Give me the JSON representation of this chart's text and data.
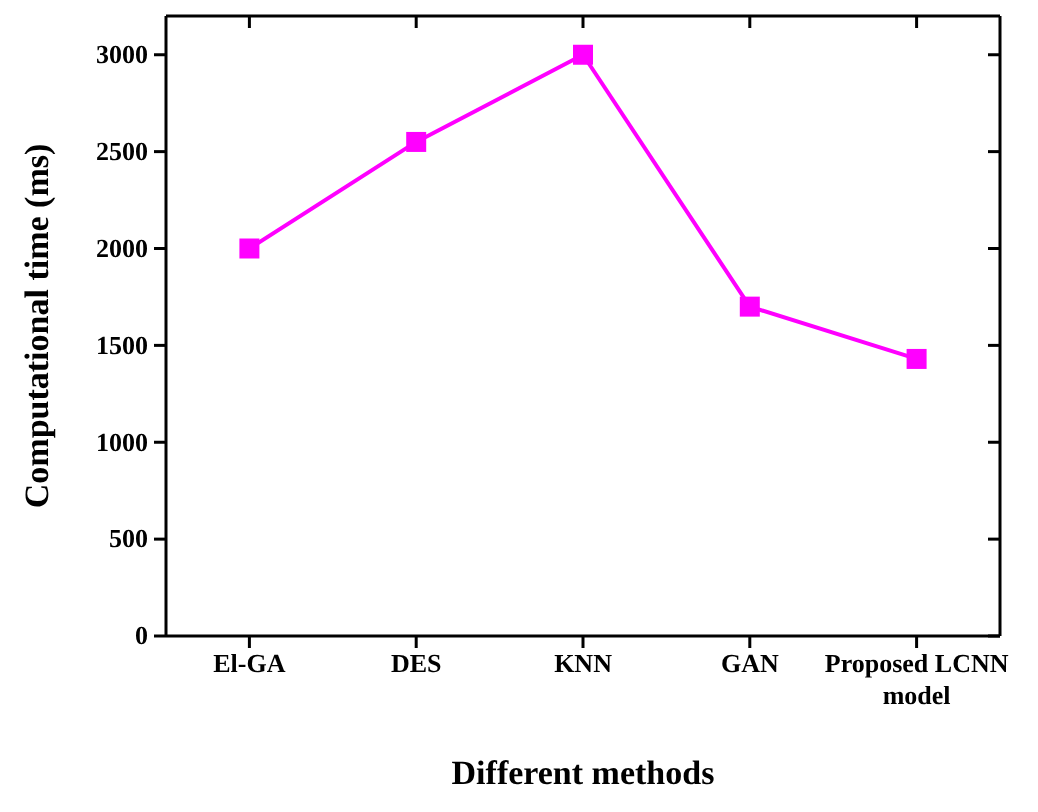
{
  "chart_data": {
    "type": "line",
    "xlabel": "Different methods",
    "ylabel": "Computational time (ms)",
    "categories": [
      "El-GA",
      "DES",
      "KNN",
      "GAN",
      "Proposed LCNN model"
    ],
    "series": [
      {
        "color": "#ff00ff",
        "values": [
          2000,
          2550,
          3000,
          1700,
          1430
        ]
      }
    ],
    "ylim": [
      0,
      3200
    ],
    "yticks": [
      0,
      500,
      1000,
      1500,
      2000,
      2500,
      3000
    ],
    "marker": "square",
    "line_style": "solid"
  }
}
